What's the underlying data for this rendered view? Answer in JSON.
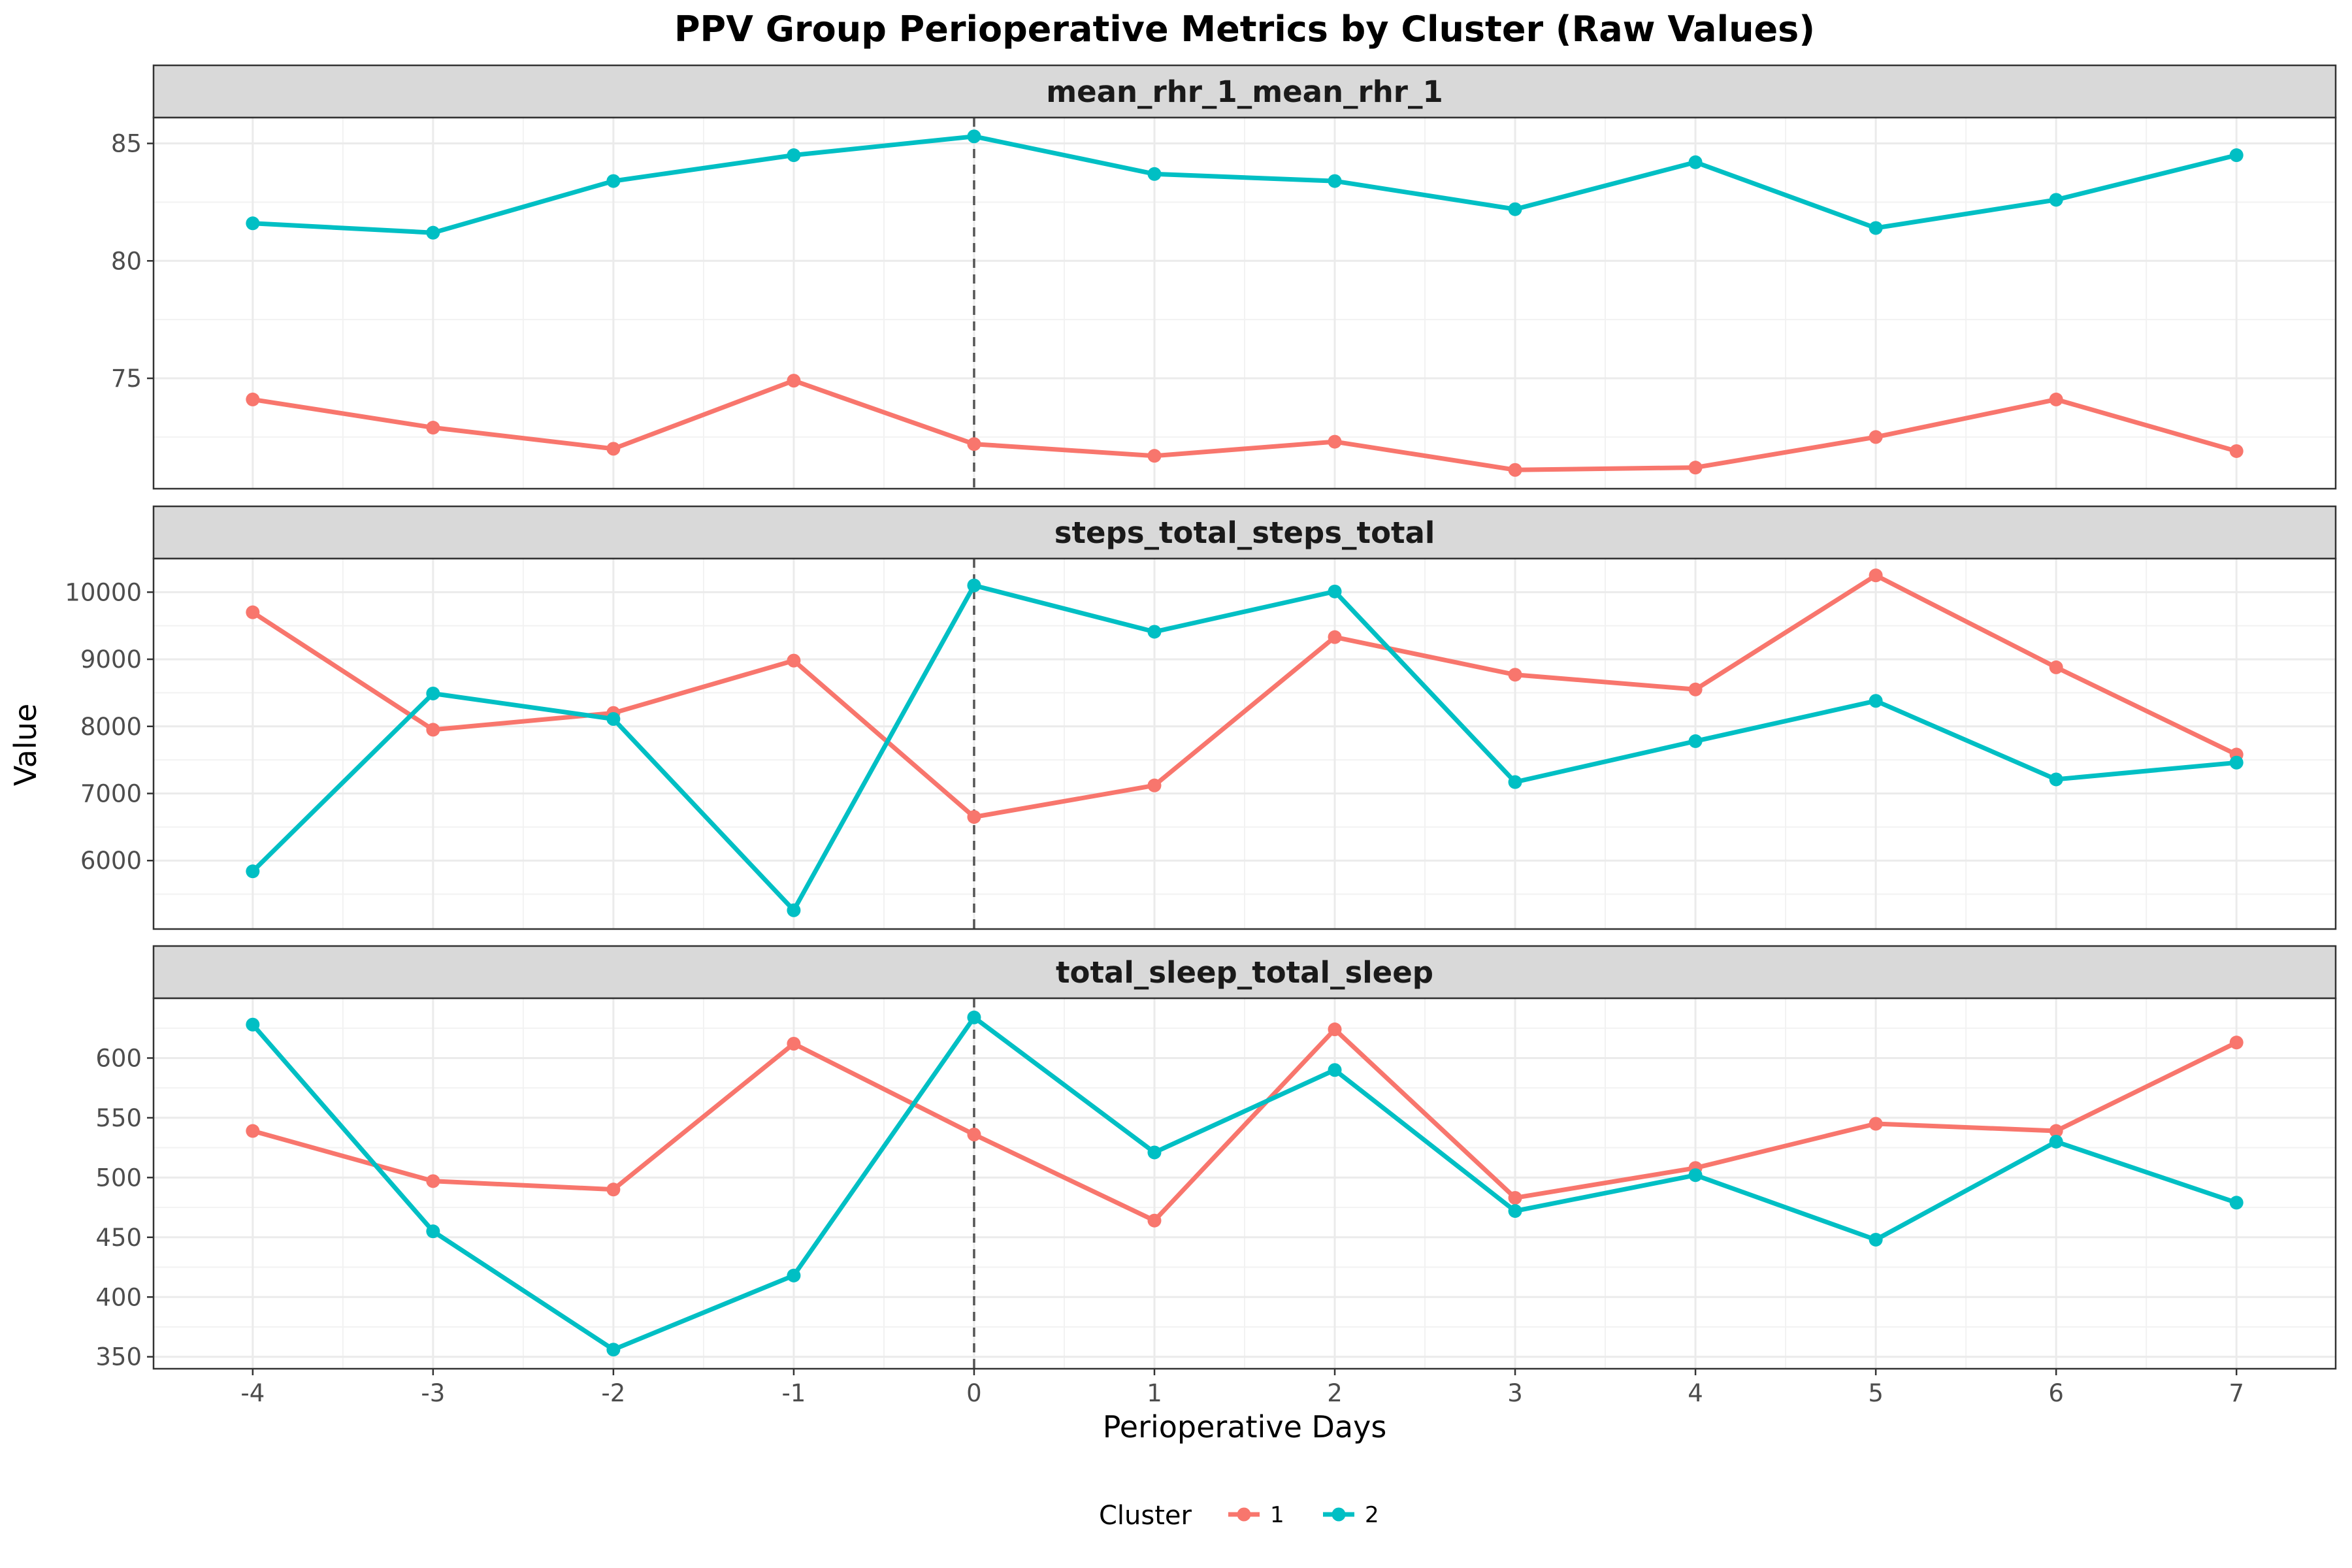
{
  "chart_data": {
    "type": "line",
    "title": "PPV Group Perioperative Metrics by Cluster (Raw Values)",
    "xlabel": "Perioperative Days",
    "ylabel": "Value",
    "x": [
      -4,
      -3,
      -2,
      -1,
      0,
      1,
      2,
      3,
      4,
      5,
      6,
      7
    ],
    "x_ticks": [
      "-4",
      "-3",
      "-2",
      "-1",
      "0",
      "1",
      "2",
      "3",
      "4",
      "5",
      "6",
      "7"
    ],
    "xlim": [
      -4.55,
      7.55
    ],
    "vline_x": 0,
    "legend": {
      "title": "Cluster",
      "position": "bottom"
    },
    "colors": {
      "1": "#F8766D",
      "2": "#00BFC4"
    },
    "panels": [
      {
        "label": "mean_rhr_1_mean_rhr_1",
        "ylim": [
          70.3,
          86.1
        ],
        "ticks": [
          75,
          80,
          85
        ],
        "tick_labels": [
          "75",
          "80",
          "85"
        ],
        "series": [
          {
            "name": "1",
            "values": [
              74.1,
              72.9,
              72.0,
              74.9,
              72.2,
              71.7,
              72.3,
              71.1,
              71.2,
              72.5,
              74.1,
              71.9
            ]
          },
          {
            "name": "2",
            "values": [
              81.6,
              81.2,
              83.4,
              84.5,
              85.3,
              83.7,
              83.4,
              82.2,
              84.2,
              81.4,
              82.6,
              84.5
            ]
          }
        ]
      },
      {
        "label": "steps_total_steps_total",
        "ylim": [
          4980,
          10500
        ],
        "ticks": [
          6000,
          7000,
          8000,
          9000,
          10000
        ],
        "tick_labels": [
          "6000",
          "7000",
          "8000",
          "9000",
          "10000"
        ],
        "series": [
          {
            "name": "1",
            "values": [
              9700,
              7950,
              8200,
              8980,
              6650,
              7120,
              9330,
              8770,
              8550,
              10250,
              8880,
              7580
            ]
          },
          {
            "name": "2",
            "values": [
              5840,
              8490,
              8110,
              5260,
              10100,
              9410,
              10010,
              7170,
              7780,
              8380,
              7210,
              7460
            ]
          }
        ]
      },
      {
        "label": "total_sleep_total_sleep",
        "ylim": [
          340,
          650
        ],
        "ticks": [
          350,
          400,
          450,
          500,
          550,
          600
        ],
        "tick_labels": [
          "350",
          "400",
          "450",
          "500",
          "550",
          "600"
        ],
        "series": [
          {
            "name": "1",
            "values": [
              539,
              497,
              490,
              612,
              536,
              464,
              624,
              483,
              508,
              545,
              539,
              613
            ]
          },
          {
            "name": "2",
            "values": [
              628,
              455,
              356,
              418,
              634,
              521,
              590,
              472,
              502,
              448,
              530,
              479
            ]
          }
        ]
      }
    ]
  }
}
